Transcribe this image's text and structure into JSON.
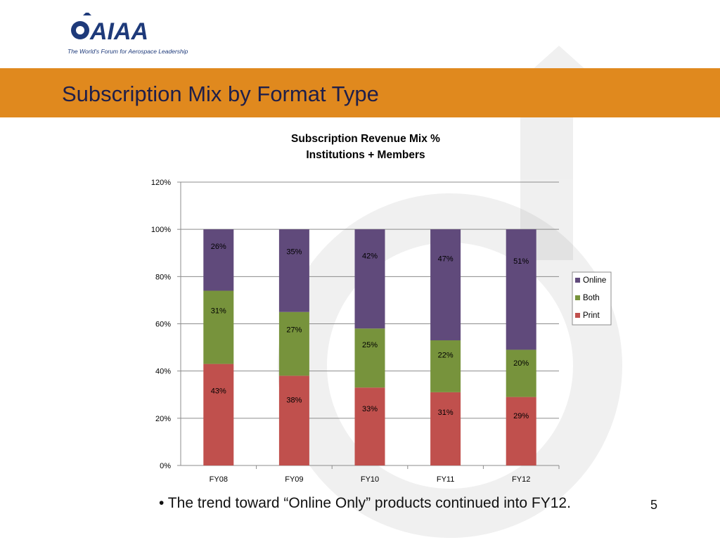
{
  "logo": {
    "text": "AIAA",
    "tagline": "The World's Forum for Aerospace Leadership"
  },
  "slide": {
    "title": "Subscription Mix by Format Type",
    "bullet": "• The trend toward “Online Only” products continued into FY12.",
    "page_number": "5"
  },
  "colors": {
    "band": "#e0891e",
    "print": "#c0504d",
    "both": "#77933c",
    "online": "#604a7b"
  },
  "chart_data": {
    "type": "bar",
    "stacked": true,
    "title": [
      "Subscription Revenue Mix %",
      "Institutions + Members"
    ],
    "categories": [
      "FY08",
      "FY09",
      "FY10",
      "FY11",
      "FY12"
    ],
    "series": [
      {
        "name": "Print",
        "color": "#c0504d",
        "values": [
          43,
          38,
          33,
          31,
          29
        ],
        "labels": [
          "43%",
          "38%",
          "33%",
          "31%",
          "29%"
        ]
      },
      {
        "name": "Both",
        "color": "#77933c",
        "values": [
          31,
          27,
          25,
          22,
          20
        ],
        "labels": [
          "31%",
          "27%",
          "25%",
          "22%",
          "20%"
        ]
      },
      {
        "name": "Online",
        "color": "#604a7b",
        "values": [
          26,
          35,
          42,
          47,
          51
        ],
        "labels": [
          "26%",
          "35%",
          "42%",
          "47%",
          "51%"
        ]
      }
    ],
    "ylim": [
      0,
      120
    ],
    "yticks": [
      "0%",
      "20%",
      "40%",
      "60%",
      "80%",
      "100%",
      "120%"
    ],
    "grid": true,
    "legend": {
      "position": "right",
      "order": [
        "Online",
        "Both",
        "Print"
      ]
    }
  }
}
